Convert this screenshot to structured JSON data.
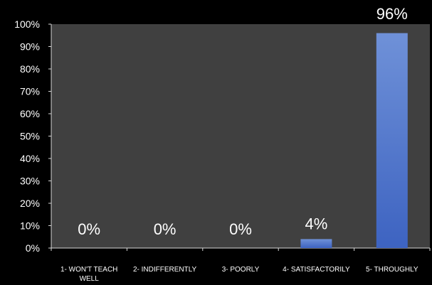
{
  "chart_data": {
    "type": "bar",
    "title": "",
    "xlabel": "",
    "ylabel": "",
    "categories": [
      [
        "1- WON'T TEACH",
        "WELL"
      ],
      [
        "2- INDIFFERENTLY"
      ],
      [
        "3- POORLY"
      ],
      [
        "4- SATISFACTORILY"
      ],
      [
        "5- THROUGHLY"
      ]
    ],
    "values": [
      0,
      0,
      0,
      4,
      96
    ],
    "data_labels": [
      "0%",
      "0%",
      "0%",
      "4%",
      "96%"
    ],
    "ylim": [
      0,
      100
    ],
    "yticks": [
      "0%",
      "10%",
      "20%",
      "30%",
      "40%",
      "50%",
      "60%",
      "70%",
      "80%",
      "90%",
      "100%"
    ],
    "grid": false,
    "legend": "none",
    "colors": {
      "page_background": "#000000",
      "plot_background": "#404040",
      "bar_top": "#6f91d8",
      "bar_bottom": "#3d63c1",
      "text": "#ffffff",
      "axis": "#d9d9d9"
    }
  }
}
